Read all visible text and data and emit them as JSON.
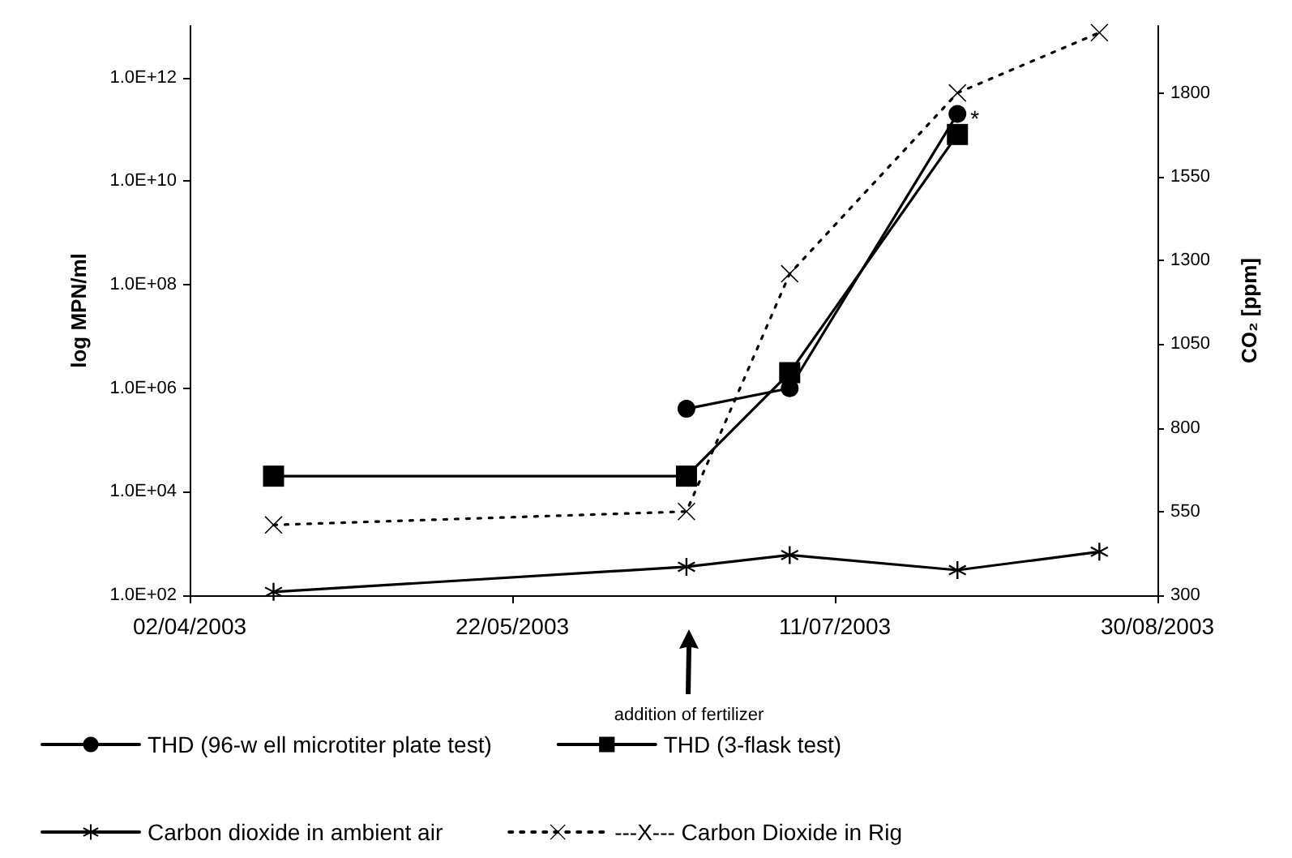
{
  "chart_data": {
    "type": "line",
    "xlabel": null,
    "ylabel": "log MPN/ml",
    "y2label": "CO₂ [ppm]",
    "xlim": [
      "2003-04-02",
      "2003-08-30"
    ],
    "xticks": [
      {
        "value": "2003-04-02",
        "label": "02/04/2003"
      },
      {
        "value": "2003-05-22",
        "label": "22/05/2003"
      },
      {
        "value": "2003-07-11",
        "label": "11/07/2003"
      },
      {
        "value": "2003-08-30",
        "label": "30/08/2003"
      }
    ],
    "log": "y",
    "ylim": [
      100,
      10000000000000
    ],
    "yticks": [
      {
        "value": 100,
        "label": "1.0E+02"
      },
      {
        "value": 10000,
        "label": "1.0E+04"
      },
      {
        "value": 1000000,
        "label": "1.0E+06"
      },
      {
        "value": 100000000,
        "label": "1.0E+08"
      },
      {
        "value": 10000000000,
        "label": "1.0E+10"
      },
      {
        "value": 1000000000000,
        "label": "1.0E+12"
      }
    ],
    "y2lim": [
      300,
      2000
    ],
    "y2ticks": [
      300,
      550,
      800,
      1050,
      1300,
      1550,
      1800
    ],
    "grid": false,
    "legend": "bottom",
    "series": [
      {
        "name": "THD (96-w ell microtiter plate test)",
        "color": "#000000",
        "marker": "circle",
        "line_style": "solid",
        "x": [
          "2003-06-18",
          "2003-07-04",
          "2003-07-30"
        ],
        "values": [
          400000,
          1000000,
          200000000000
        ]
      },
      {
        "name": "THD (3-flask test)",
        "color": "#000000",
        "marker": "square",
        "line_style": "solid",
        "x": [
          "2003-04-15",
          "2003-06-18",
          "2003-07-04",
          "2003-07-30"
        ],
        "values": [
          20000,
          20000,
          2000000,
          80000000000
        ]
      },
      {
        "name": "Carbon dioxide in ambient air",
        "color": "#000000",
        "marker": "star",
        "line_style": "solid",
        "axis": "y2",
        "x": [
          "2003-04-15",
          "2003-06-18",
          "2003-07-04",
          "2003-07-30",
          "2003-08-21"
        ],
        "values": [
          310,
          385,
          420,
          375,
          430
        ]
      },
      {
        "name": "---X--- Carbon Dioxide in Rig",
        "color": "#000000",
        "marker": "cross",
        "line_style": "dotted",
        "axis": "y2",
        "x": [
          "2003-04-15",
          "2003-06-18",
          "2003-07-04",
          "2003-07-30",
          "2003-08-21"
        ],
        "values": [
          510,
          550,
          1260,
          1800,
          1980
        ]
      }
    ],
    "annotations": [
      "addition of fertilizer",
      {
        "text": "*",
        "x": "2003-07-30",
        "y": 80000000000
      }
    ]
  }
}
